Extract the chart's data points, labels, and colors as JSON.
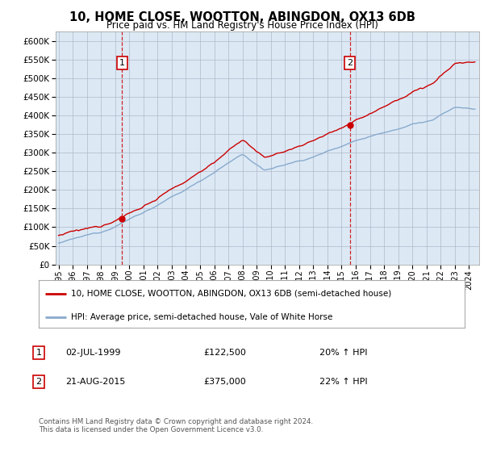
{
  "title": "10, HOME CLOSE, WOOTTON, ABINGDON, OX13 6DB",
  "subtitle": "Price paid vs. HM Land Registry's House Price Index (HPI)",
  "sale1_price": 122500,
  "sale1_label": "02-JUL-1999",
  "sale1_hpi_pct": "20% ↑ HPI",
  "sale2_price": 375000,
  "sale2_label": "21-AUG-2015",
  "sale2_hpi_pct": "22% ↑ HPI",
  "property_label": "10, HOME CLOSE, WOOTTON, ABINGDON, OX13 6DB (semi-detached house)",
  "hpi_label": "HPI: Average price, semi-detached house, Vale of White Horse",
  "property_color": "#cc0000",
  "hpi_color": "#88aacc",
  "plot_bg": "#dce9f5",
  "ylim": [
    0,
    625000
  ],
  "yticks": [
    0,
    50000,
    100000,
    150000,
    200000,
    250000,
    300000,
    350000,
    400000,
    450000,
    500000,
    550000,
    600000
  ],
  "sale1_year": 1999,
  "sale1_month": 7,
  "sale2_year": 2015,
  "sale2_month": 8,
  "start_year": 1995,
  "start_month": 1,
  "end_year": 2024,
  "end_month": 6,
  "footnote": "Contains HM Land Registry data © Crown copyright and database right 2024.\nThis data is licensed under the Open Government Licence v3.0."
}
